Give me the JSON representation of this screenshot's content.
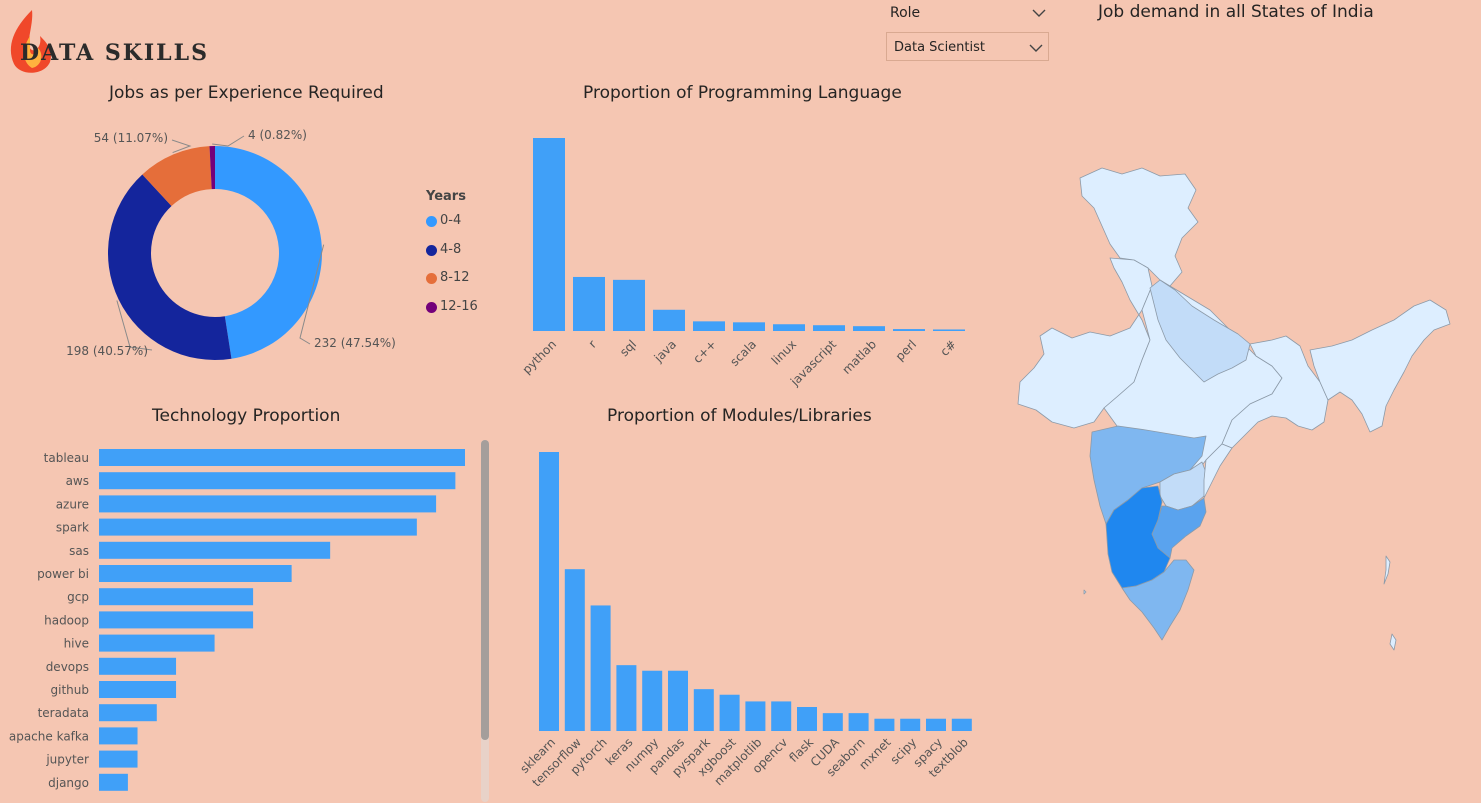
{
  "app": {
    "logo_text": "DATA SKILLS"
  },
  "slicer": {
    "label": "Role",
    "selected": "Data Scientist"
  },
  "map": {
    "title": "Job demand in all States of India",
    "colors": {
      "base": "#ddeeff",
      "light": "#c2dcf8",
      "medium": "#7fb7f0",
      "strong": "#5aa3ee",
      "dark": "#1f87ef",
      "border": "#8c9aa8"
    }
  },
  "colors": {
    "background": "#f5c6b2",
    "bar": "#40a0f8",
    "c04": "#3399ff",
    "c48": "#14259c",
    "c812": "#e56e3a",
    "c1216": "#74007a"
  },
  "chart_data": [
    {
      "id": "experience",
      "type": "pie",
      "title": "Jobs as per Experience Required",
      "legend_title": "Years",
      "legend_position": "right",
      "slices": [
        {
          "label": "0-4",
          "value": 232,
          "percent": "47.54%",
          "color": "#3399ff",
          "data_label": "232 (47.54%)"
        },
        {
          "label": "4-8",
          "value": 198,
          "percent": "40.57%",
          "color": "#14259c",
          "data_label": "198 (40.57%)"
        },
        {
          "label": "8-12",
          "value": 54,
          "percent": "11.07%",
          "color": "#e56e3a",
          "data_label": "54 (11.07%)"
        },
        {
          "label": "12-16",
          "value": 4,
          "percent": "0.82%",
          "color": "#74007a",
          "data_label": "4 (0.82%)"
        }
      ]
    },
    {
      "id": "languages",
      "type": "bar",
      "title": "Proportion of Programming Language",
      "categories": [
        "python",
        "r",
        "sql",
        "java",
        "c++",
        "scala",
        "linux",
        "javascript",
        "matlab",
        "perl",
        "c#"
      ],
      "values": [
        100,
        28,
        26.5,
        11,
        5,
        4.5,
        3.5,
        3,
        2.5,
        1,
        0.8
      ],
      "ylim": [
        0,
        100
      ]
    },
    {
      "id": "technology",
      "type": "bar",
      "orientation": "horizontal",
      "title": "Technology Proportion",
      "categories": [
        "tableau",
        "aws",
        "azure",
        "spark",
        "sas",
        "power bi",
        "gcp",
        "hadoop",
        "hive",
        "devops",
        "github",
        "teradata",
        "apache kafka",
        "jupyter",
        "django"
      ],
      "values": [
        19,
        18.5,
        17.5,
        16.5,
        12,
        10,
        8,
        8,
        6,
        4,
        4,
        3,
        2,
        2,
        1.5
      ],
      "ylim": [
        0,
        19
      ]
    },
    {
      "id": "modules",
      "type": "bar",
      "title": "Proportion of Modules/Libraries",
      "categories": [
        "sklearn",
        "tensorflow",
        "pytorch",
        "keras",
        "numpy",
        "pandas",
        "pyspark",
        "xgboost",
        "matplotlib",
        "opencv",
        "flask",
        "CUDA",
        "seaborn",
        "mxnet",
        "scipy",
        "spacy",
        "textblob"
      ],
      "values": [
        50,
        29,
        22.5,
        11.8,
        10.8,
        10.8,
        7.5,
        6.5,
        5.3,
        5.3,
        4.3,
        3.2,
        3.2,
        2.2,
        2.2,
        2.2,
        2.2
      ],
      "ylim": [
        0,
        50
      ]
    }
  ]
}
